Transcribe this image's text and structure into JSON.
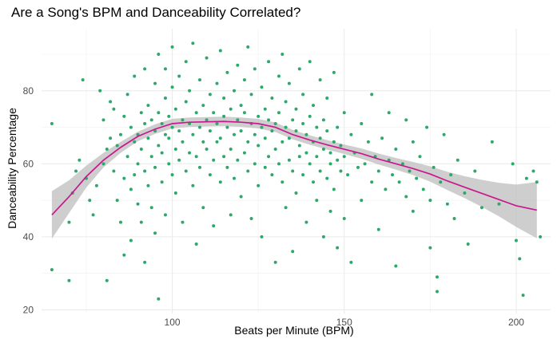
{
  "chart_data": {
    "type": "scatter",
    "title": "Are a Song's BPM and Danceability Correlated?",
    "xlabel": "Beats per Minute (BPM)",
    "ylabel": "Danceability Percentage",
    "xlim": [
      62,
      210
    ],
    "ylim": [
      19,
      97
    ],
    "x_ticks": [
      100,
      150,
      200
    ],
    "y_ticks": [
      20,
      40,
      60,
      80
    ],
    "x_tick_labels": [
      "100",
      "150",
      "200"
    ],
    "y_tick_labels": [
      "20",
      "40",
      "60",
      "80"
    ],
    "grid": true,
    "point_color": "#2ea86a",
    "trend_color": "#c8188e",
    "band_color": "#bdbdbd",
    "points": [
      [
        65,
        71
      ],
      [
        65,
        31
      ],
      [
        70,
        28
      ],
      [
        70,
        44
      ],
      [
        71,
        52
      ],
      [
        72,
        58
      ],
      [
        73,
        61
      ],
      [
        74,
        83
      ],
      [
        75,
        56
      ],
      [
        76,
        50
      ],
      [
        77,
        46
      ],
      [
        78,
        54
      ],
      [
        79,
        80
      ],
      [
        80,
        72
      ],
      [
        80,
        60
      ],
      [
        81,
        28
      ],
      [
        81,
        64
      ],
      [
        82,
        67
      ],
      [
        82,
        77
      ],
      [
        83,
        75
      ],
      [
        83,
        58
      ],
      [
        84,
        65
      ],
      [
        84,
        50
      ],
      [
        85,
        68
      ],
      [
        85,
        44
      ],
      [
        86,
        35
      ],
      [
        86,
        73
      ],
      [
        86,
        56
      ],
      [
        87,
        62
      ],
      [
        87,
        79
      ],
      [
        88,
        70
      ],
      [
        88,
        53
      ],
      [
        88,
        39
      ],
      [
        89,
        66
      ],
      [
        89,
        57
      ],
      [
        89,
        84
      ],
      [
        90,
        68
      ],
      [
        90,
        60
      ],
      [
        90,
        49
      ],
      [
        91,
        74
      ],
      [
        91,
        64
      ],
      [
        91,
        44
      ],
      [
        92,
        71
      ],
      [
        92,
        58
      ],
      [
        92,
        86
      ],
      [
        92,
        33
      ],
      [
        93,
        67
      ],
      [
        93,
        76
      ],
      [
        93,
        54
      ],
      [
        94,
        62
      ],
      [
        94,
        72
      ],
      [
        94,
        48
      ],
      [
        95,
        69
      ],
      [
        95,
        82
      ],
      [
        95,
        59
      ],
      [
        95,
        41
      ],
      [
        96,
        74
      ],
      [
        96,
        65
      ],
      [
        96,
        23
      ],
      [
        96,
        90
      ],
      [
        97,
        63
      ],
      [
        97,
        71
      ],
      [
        97,
        55
      ],
      [
        98,
        68
      ],
      [
        98,
        78
      ],
      [
        98,
        46
      ],
      [
        98,
        86
      ],
      [
        99,
        60
      ],
      [
        99,
        73
      ],
      [
        99,
        67
      ],
      [
        100,
        70
      ],
      [
        100,
        57
      ],
      [
        100,
        81
      ],
      [
        100,
        92
      ],
      [
        101,
        64
      ],
      [
        101,
        75
      ],
      [
        101,
        52
      ],
      [
        102,
        69
      ],
      [
        102,
        61
      ],
      [
        102,
        84
      ],
      [
        103,
        72
      ],
      [
        103,
        66
      ],
      [
        103,
        44
      ],
      [
        104,
        77
      ],
      [
        104,
        58
      ],
      [
        104,
        88
      ],
      [
        105,
        71
      ],
      [
        105,
        63
      ],
      [
        105,
        80
      ],
      [
        106,
        68
      ],
      [
        106,
        54
      ],
      [
        106,
        93
      ],
      [
        107,
        74
      ],
      [
        107,
        62
      ],
      [
        107,
        38
      ],
      [
        108,
        70
      ],
      [
        108,
        83
      ],
      [
        108,
        59
      ],
      [
        109,
        66
      ],
      [
        109,
        76
      ],
      [
        109,
        48
      ],
      [
        110,
        72
      ],
      [
        110,
        64
      ],
      [
        110,
        89
      ],
      [
        111,
        69
      ],
      [
        111,
        57
      ],
      [
        111,
        79
      ],
      [
        112,
        74
      ],
      [
        112,
        61
      ],
      [
        112,
        43
      ],
      [
        113,
        71
      ],
      [
        113,
        82
      ],
      [
        113,
        66
      ],
      [
        114,
        67
      ],
      [
        114,
        55
      ],
      [
        114,
        91
      ],
      [
        115,
        73
      ],
      [
        115,
        62
      ],
      [
        115,
        78
      ],
      [
        116,
        70
      ],
      [
        116,
        59
      ],
      [
        116,
        85
      ],
      [
        117,
        75
      ],
      [
        117,
        64
      ],
      [
        117,
        46
      ],
      [
        118,
        68
      ],
      [
        118,
        80
      ],
      [
        118,
        56
      ],
      [
        119,
        72
      ],
      [
        119,
        61
      ],
      [
        119,
        87
      ],
      [
        120,
        69
      ],
      [
        120,
        76
      ],
      [
        120,
        51
      ],
      [
        121,
        74
      ],
      [
        121,
        63
      ],
      [
        121,
        83
      ],
      [
        122,
        66
      ],
      [
        122,
        58
      ],
      [
        122,
        92
      ],
      [
        123,
        71
      ],
      [
        123,
        79
      ],
      [
        123,
        45
      ],
      [
        124,
        68
      ],
      [
        124,
        60
      ],
      [
        124,
        86
      ],
      [
        125,
        73
      ],
      [
        125,
        65
      ],
      [
        125,
        54
      ],
      [
        126,
        70
      ],
      [
        126,
        81
      ],
      [
        126,
        40
      ],
      [
        127,
        67
      ],
      [
        127,
        75
      ],
      [
        127,
        59
      ],
      [
        128,
        72
      ],
      [
        128,
        62
      ],
      [
        128,
        88
      ],
      [
        129,
        69
      ],
      [
        129,
        57
      ],
      [
        129,
        78
      ],
      [
        130,
        71
      ],
      [
        130,
        64
      ],
      [
        130,
        33
      ],
      [
        131,
        74
      ],
      [
        131,
        60
      ],
      [
        131,
        84
      ],
      [
        132,
        66
      ],
      [
        132,
        55
      ],
      [
        132,
        90
      ],
      [
        133,
        70
      ],
      [
        133,
        77
      ],
      [
        133,
        48
      ],
      [
        134,
        67
      ],
      [
        134,
        61
      ],
      [
        134,
        82
      ],
      [
        135,
        72
      ],
      [
        135,
        58
      ],
      [
        135,
        36
      ],
      [
        136,
        69
      ],
      [
        136,
        75
      ],
      [
        136,
        52
      ],
      [
        137,
        65
      ],
      [
        137,
        62
      ],
      [
        137,
        86
      ],
      [
        138,
        71
      ],
      [
        138,
        57
      ],
      [
        138,
        79
      ],
      [
        139,
        68
      ],
      [
        139,
        63
      ],
      [
        139,
        44
      ],
      [
        140,
        73
      ],
      [
        140,
        60
      ],
      [
        140,
        88
      ],
      [
        141,
        66
      ],
      [
        141,
        55
      ],
      [
        141,
        76
      ],
      [
        142,
        70
      ],
      [
        142,
        62
      ],
      [
        142,
        50
      ],
      [
        143,
        67
      ],
      [
        143,
        58
      ],
      [
        143,
        83
      ],
      [
        144,
        64
      ],
      [
        144,
        72
      ],
      [
        144,
        40
      ],
      [
        145,
        69
      ],
      [
        145,
        56
      ],
      [
        145,
        78
      ],
      [
        146,
        63
      ],
      [
        146,
        60
      ],
      [
        146,
        47
      ],
      [
        147,
        66
      ],
      [
        147,
        53
      ],
      [
        147,
        85
      ],
      [
        148,
        61
      ],
      [
        148,
        70
      ],
      [
        148,
        37
      ],
      [
        149,
        65
      ],
      [
        149,
        58
      ],
      [
        150,
        62
      ],
      [
        150,
        74
      ],
      [
        150,
        45
      ],
      [
        151,
        57
      ],
      [
        152,
        68
      ],
      [
        152,
        33
      ],
      [
        153,
        63
      ],
      [
        154,
        59
      ],
      [
        155,
        71
      ],
      [
        155,
        50
      ],
      [
        156,
        60
      ],
      [
        157,
        66
      ],
      [
        158,
        55
      ],
      [
        158,
        79
      ],
      [
        159,
        62
      ],
      [
        160,
        58
      ],
      [
        160,
        42
      ],
      [
        161,
        67
      ],
      [
        162,
        53
      ],
      [
        163,
        61
      ],
      [
        163,
        74
      ],
      [
        164,
        57
      ],
      [
        165,
        64
      ],
      [
        165,
        32
      ],
      [
        166,
        55
      ],
      [
        167,
        60
      ],
      [
        168,
        51
      ],
      [
        168,
        72
      ],
      [
        169,
        58
      ],
      [
        170,
        47
      ],
      [
        170,
        66
      ],
      [
        171,
        56
      ],
      [
        172,
        62
      ],
      [
        173,
        53
      ],
      [
        174,
        70
      ],
      [
        175,
        50
      ],
      [
        175,
        37
      ],
      [
        176,
        59
      ],
      [
        177,
        29
      ],
      [
        177,
        25
      ],
      [
        178,
        55
      ],
      [
        179,
        68
      ],
      [
        180,
        49
      ],
      [
        181,
        57
      ],
      [
        182,
        45
      ],
      [
        183,
        61
      ],
      [
        185,
        52
      ],
      [
        186,
        38
      ],
      [
        188,
        58
      ],
      [
        190,
        48
      ],
      [
        193,
        66
      ],
      [
        195,
        49
      ],
      [
        199,
        60
      ],
      [
        200,
        39
      ],
      [
        201,
        34
      ],
      [
        202,
        24
      ],
      [
        203,
        56
      ],
      [
        205,
        58
      ],
      [
        206,
        55
      ],
      [
        207,
        40
      ]
    ],
    "trend": [
      [
        65,
        46
      ],
      [
        70,
        51
      ],
      [
        75,
        56.5
      ],
      [
        80,
        61
      ],
      [
        85,
        64.5
      ],
      [
        90,
        67.5
      ],
      [
        95,
        69.5
      ],
      [
        100,
        71
      ],
      [
        105,
        71.4
      ],
      [
        110,
        71.5
      ],
      [
        115,
        71.6
      ],
      [
        120,
        71.4
      ],
      [
        125,
        71
      ],
      [
        130,
        70
      ],
      [
        135,
        68
      ],
      [
        140,
        66.5
      ],
      [
        145,
        65.2
      ],
      [
        150,
        64
      ],
      [
        155,
        62.8
      ],
      [
        160,
        61.3
      ],
      [
        165,
        60
      ],
      [
        170,
        58.7
      ],
      [
        175,
        57.2
      ],
      [
        180,
        55.3
      ],
      [
        185,
        53.6
      ],
      [
        190,
        51.9
      ],
      [
        195,
        50.2
      ],
      [
        200,
        48.5
      ],
      [
        206,
        47.3
      ]
    ],
    "band_upper": [
      [
        65,
        52.5
      ],
      [
        70,
        55.5
      ],
      [
        75,
        59.5
      ],
      [
        80,
        63
      ],
      [
        85,
        66
      ],
      [
        90,
        68.8
      ],
      [
        95,
        70.8
      ],
      [
        100,
        72.3
      ],
      [
        105,
        72.7
      ],
      [
        110,
        72.8
      ],
      [
        115,
        72.9
      ],
      [
        120,
        72.7
      ],
      [
        125,
        72.3
      ],
      [
        130,
        71.3
      ],
      [
        135,
        69.3
      ],
      [
        140,
        67.8
      ],
      [
        145,
        66.5
      ],
      [
        150,
        65.3
      ],
      [
        155,
        64.2
      ],
      [
        160,
        62.8
      ],
      [
        165,
        61.6
      ],
      [
        170,
        60.5
      ],
      [
        175,
        59.3
      ],
      [
        180,
        57.8
      ],
      [
        185,
        56.6
      ],
      [
        190,
        55.6
      ],
      [
        195,
        54.8
      ],
      [
        200,
        54.3
      ],
      [
        206,
        55
      ]
    ],
    "band_lower": [
      [
        65,
        39.5
      ],
      [
        70,
        46.5
      ],
      [
        75,
        53.5
      ],
      [
        80,
        59
      ],
      [
        85,
        63
      ],
      [
        90,
        66.2
      ],
      [
        95,
        68.2
      ],
      [
        100,
        69.7
      ],
      [
        105,
        70.1
      ],
      [
        110,
        70.2
      ],
      [
        115,
        70.3
      ],
      [
        120,
        70.1
      ],
      [
        125,
        69.7
      ],
      [
        130,
        68.7
      ],
      [
        135,
        66.7
      ],
      [
        140,
        65.2
      ],
      [
        145,
        63.9
      ],
      [
        150,
        62.7
      ],
      [
        155,
        61.4
      ],
      [
        160,
        59.8
      ],
      [
        165,
        58.4
      ],
      [
        170,
        56.9
      ],
      [
        175,
        55.1
      ],
      [
        180,
        52.8
      ],
      [
        185,
        50.6
      ],
      [
        190,
        48.2
      ],
      [
        195,
        45.6
      ],
      [
        200,
        42.7
      ],
      [
        206,
        39.6
      ]
    ]
  }
}
